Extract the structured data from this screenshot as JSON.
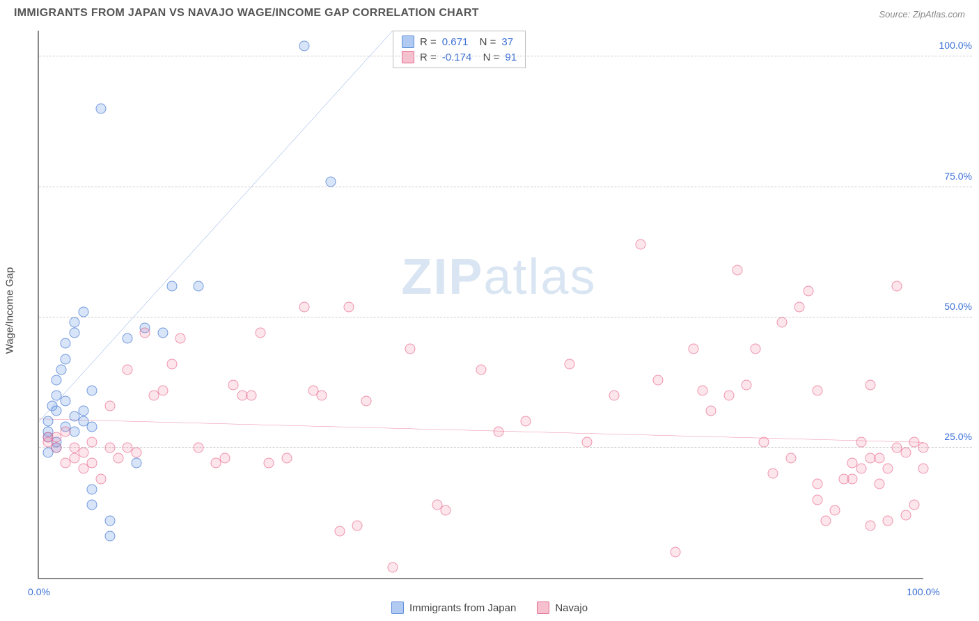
{
  "header": {
    "title": "IMMIGRANTS FROM JAPAN VS NAVAJO WAGE/INCOME GAP CORRELATION CHART",
    "source": "Source: ZipAtlas.com"
  },
  "chart": {
    "type": "scatter",
    "ylabel": "Wage/Income Gap",
    "xlim": [
      0,
      100
    ],
    "ylim": [
      0,
      105
    ],
    "xtick_labels": [
      "0.0%",
      "100.0%"
    ],
    "xtick_positions": [
      0,
      100
    ],
    "ytick_labels": [
      "25.0%",
      "50.0%",
      "75.0%",
      "100.0%"
    ],
    "ytick_positions": [
      25,
      50,
      75,
      100
    ],
    "grid_color": "#cccccc",
    "axis_color": "#888888",
    "background_color": "#ffffff",
    "marker_size": 15,
    "watermark": "ZIPatlas",
    "series": [
      {
        "name": "Immigrants from Japan",
        "color_fill": "rgba(100,150,230,0.25)",
        "color_stroke": "#5a8bd9",
        "trend_color": "#3b6fd6",
        "trend_width": 2,
        "trend": {
          "x0": 0,
          "y0": 30,
          "x1": 40,
          "y1": 105
        },
        "R": "0.671",
        "N": "37",
        "points": [
          [
            1,
            27
          ],
          [
            1,
            28
          ],
          [
            1,
            30
          ],
          [
            1.5,
            33
          ],
          [
            2,
            32
          ],
          [
            2,
            35
          ],
          [
            2,
            38
          ],
          [
            2.5,
            40
          ],
          [
            3,
            34
          ],
          [
            3,
            42
          ],
          [
            3,
            45
          ],
          [
            4,
            28
          ],
          [
            4,
            47
          ],
          [
            4,
            49
          ],
          [
            5,
            32
          ],
          [
            5,
            51
          ],
          [
            6,
            36
          ],
          [
            6,
            29
          ],
          [
            7,
            90
          ],
          [
            6,
            14
          ],
          [
            6,
            17
          ],
          [
            8,
            11
          ],
          [
            8,
            8
          ],
          [
            10,
            46
          ],
          [
            11,
            22
          ],
          [
            12,
            48
          ],
          [
            14,
            47
          ],
          [
            15,
            56
          ],
          [
            18,
            56
          ],
          [
            30,
            102
          ],
          [
            33,
            76
          ],
          [
            2,
            25
          ],
          [
            2,
            26
          ],
          [
            1,
            24
          ],
          [
            3,
            29
          ],
          [
            4,
            31
          ],
          [
            5,
            30
          ]
        ]
      },
      {
        "name": "Navajo",
        "color_fill": "rgba(240,130,160,0.2)",
        "color_stroke": "#e06a8d",
        "trend_color": "#e4577f",
        "trend_width": 2,
        "trend": {
          "x0": 0,
          "y0": 30.5,
          "x1": 100,
          "y1": 26
        },
        "R": "-0.174",
        "N": "91",
        "points": [
          [
            1,
            26
          ],
          [
            1,
            27
          ],
          [
            2,
            25
          ],
          [
            2,
            27
          ],
          [
            3,
            22
          ],
          [
            3,
            28
          ],
          [
            4,
            25
          ],
          [
            4,
            23
          ],
          [
            5,
            24
          ],
          [
            5,
            21
          ],
          [
            6,
            22
          ],
          [
            6,
            26
          ],
          [
            7,
            19
          ],
          [
            8,
            25
          ],
          [
            8,
            33
          ],
          [
            9,
            23
          ],
          [
            10,
            25
          ],
          [
            10,
            40
          ],
          [
            11,
            24
          ],
          [
            12,
            47
          ],
          [
            13,
            35
          ],
          [
            14,
            36
          ],
          [
            15,
            41
          ],
          [
            16,
            46
          ],
          [
            18,
            25
          ],
          [
            20,
            22
          ],
          [
            21,
            23
          ],
          [
            22,
            37
          ],
          [
            23,
            35
          ],
          [
            24,
            35
          ],
          [
            25,
            47
          ],
          [
            26,
            22
          ],
          [
            28,
            23
          ],
          [
            30,
            52
          ],
          [
            31,
            36
          ],
          [
            32,
            35
          ],
          [
            34,
            9
          ],
          [
            35,
            52
          ],
          [
            36,
            10
          ],
          [
            37,
            34
          ],
          [
            40,
            2
          ],
          [
            42,
            44
          ],
          [
            45,
            14
          ],
          [
            46,
            13
          ],
          [
            50,
            40
          ],
          [
            52,
            28
          ],
          [
            55,
            30
          ],
          [
            60,
            41
          ],
          [
            62,
            26
          ],
          [
            65,
            35
          ],
          [
            68,
            64
          ],
          [
            70,
            38
          ],
          [
            72,
            5
          ],
          [
            74,
            44
          ],
          [
            75,
            36
          ],
          [
            76,
            32
          ],
          [
            78,
            35
          ],
          [
            79,
            59
          ],
          [
            80,
            37
          ],
          [
            81,
            44
          ],
          [
            82,
            26
          ],
          [
            83,
            20
          ],
          [
            84,
            49
          ],
          [
            85,
            23
          ],
          [
            86,
            52
          ],
          [
            87,
            55
          ],
          [
            88,
            36
          ],
          [
            88,
            18
          ],
          [
            88,
            15
          ],
          [
            89,
            11
          ],
          [
            90,
            13
          ],
          [
            91,
            19
          ],
          [
            92,
            19
          ],
          [
            92,
            22
          ],
          [
            93,
            26
          ],
          [
            93,
            21
          ],
          [
            94,
            10
          ],
          [
            94,
            23
          ],
          [
            94,
            37
          ],
          [
            95,
            18
          ],
          [
            95,
            23
          ],
          [
            96,
            11
          ],
          [
            96,
            21
          ],
          [
            97,
            25
          ],
          [
            97,
            56
          ],
          [
            98,
            24
          ],
          [
            98,
            12
          ],
          [
            99,
            14
          ],
          [
            99,
            26
          ],
          [
            100,
            21
          ],
          [
            100,
            25
          ]
        ]
      }
    ]
  },
  "legend": {
    "items": [
      "Immigrants from Japan",
      "Navajo"
    ]
  }
}
